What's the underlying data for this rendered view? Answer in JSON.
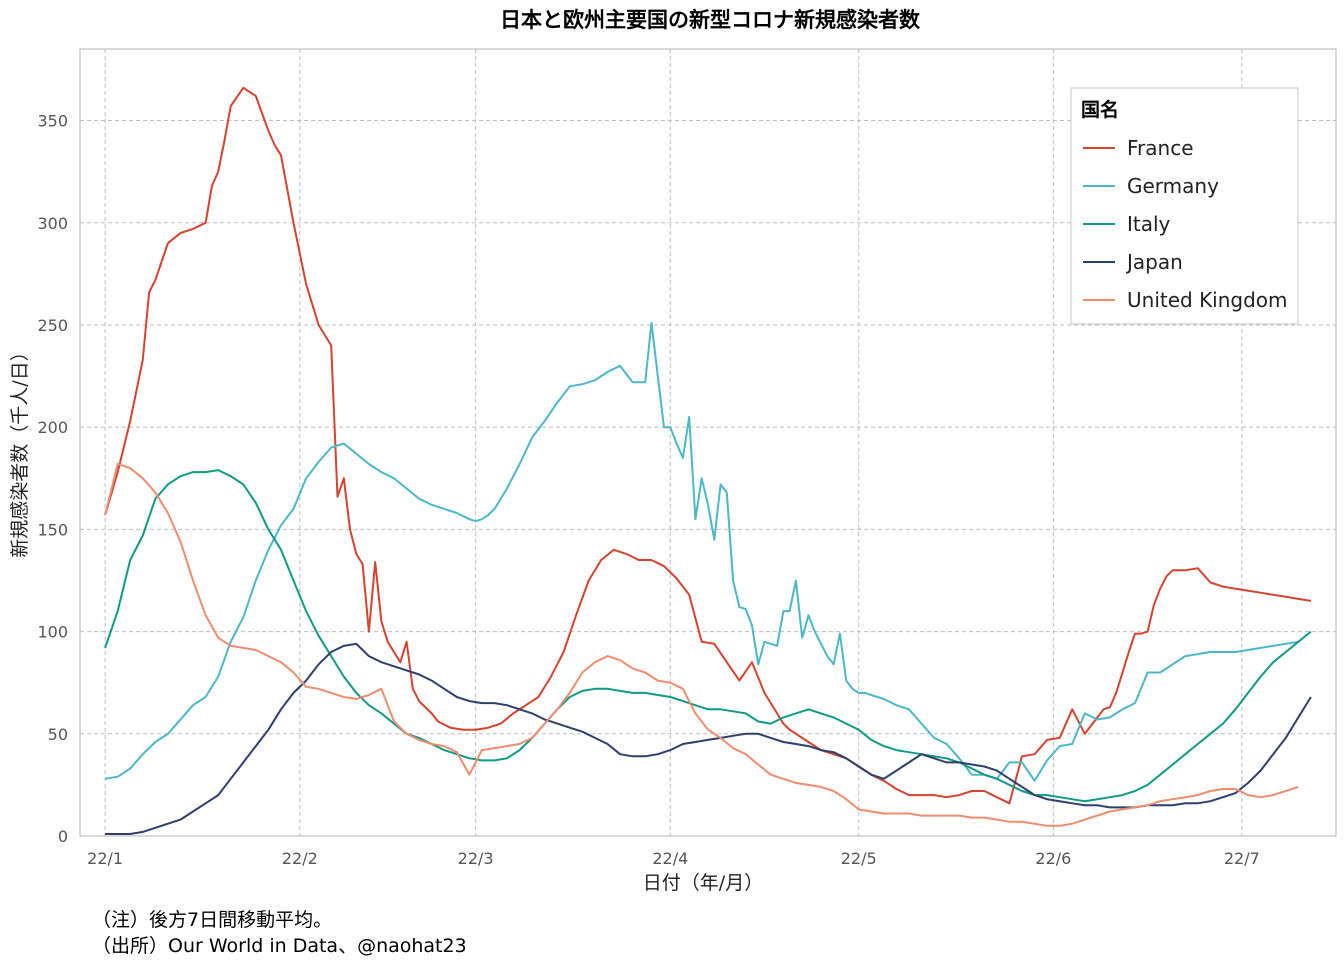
{
  "chart_data": {
    "type": "line",
    "title": "日本と欧州主要国の新型コロナ新規感染者数",
    "xlabel": "日付（年/月）",
    "ylabel": "新規感染者数（千人/日）",
    "ylim": [
      0,
      385
    ],
    "yticks": [
      0,
      50,
      100,
      150,
      200,
      250,
      300,
      350
    ],
    "xlim_days": [
      -4,
      196
    ],
    "xticks": [
      {
        "label": "22/1",
        "day": 0
      },
      {
        "label": "22/2",
        "day": 31
      },
      {
        "label": "22/3",
        "day": 59
      },
      {
        "label": "22/4",
        "day": 90
      },
      {
        "label": "22/5",
        "day": 120
      },
      {
        "label": "22/6",
        "day": 151
      },
      {
        "label": "22/7",
        "day": 181
      }
    ],
    "grid": true,
    "legend": {
      "title": "国名",
      "placement": "top-right"
    },
    "series": [
      {
        "name": "France",
        "color": "#D5432F",
        "x": [
          0,
          2,
          4,
          6,
          7,
          8,
          10,
          12,
          14,
          16,
          17,
          18,
          19,
          20,
          22,
          24,
          26,
          27,
          28,
          30,
          32,
          34,
          36,
          37,
          38,
          39,
          40,
          41,
          42,
          43,
          44,
          45,
          47,
          48,
          49,
          50,
          52,
          53,
          55,
          57,
          59,
          61,
          63,
          65,
          67,
          69,
          71,
          73,
          75,
          77,
          79,
          81,
          83,
          85,
          87,
          89,
          91,
          93,
          95,
          97,
          99,
          101,
          103,
          105,
          107,
          108,
          109,
          111,
          113,
          114,
          115,
          116,
          118,
          120,
          122,
          124,
          126,
          128,
          130,
          132,
          134,
          136,
          138,
          140,
          142,
          144,
          146,
          148,
          150,
          152,
          154,
          156,
          157,
          158,
          159,
          160,
          161,
          162,
          163,
          164,
          165,
          166,
          167,
          168,
          169,
          170,
          172,
          174,
          176,
          178,
          180,
          182,
          184,
          186,
          188,
          190,
          192
        ],
        "y": [
          157,
          178,
          203,
          233,
          266,
          272,
          290,
          295,
          297,
          300,
          318,
          325,
          340,
          357,
          366,
          362,
          345,
          338,
          333,
          300,
          270,
          250,
          240,
          166,
          175,
          150,
          138,
          133,
          100,
          134,
          105,
          95,
          85,
          95,
          72,
          66,
          60,
          56,
          53,
          52,
          52,
          53,
          55,
          60,
          64,
          68,
          78,
          90,
          108,
          125,
          135,
          140,
          138,
          135,
          135,
          132,
          126,
          118,
          95,
          94,
          85,
          76,
          85,
          70,
          60,
          55,
          52,
          48,
          44,
          42,
          41,
          40,
          38,
          34,
          30,
          27,
          23,
          20,
          20,
          20,
          19,
          20,
          22,
          22,
          19,
          16,
          39,
          40,
          47,
          48,
          62,
          50,
          54,
          58,
          62,
          63,
          70,
          80,
          90,
          99,
          99,
          100,
          113,
          121,
          127,
          130,
          130,
          131,
          124,
          122,
          121,
          120,
          119,
          118,
          117,
          116,
          115
        ]
      },
      {
        "name": "Germany",
        "color": "#4BB7C9",
        "x": [
          0,
          2,
          4,
          6,
          8,
          10,
          12,
          14,
          16,
          18,
          20,
          22,
          24,
          26,
          28,
          30,
          32,
          34,
          36,
          38,
          40,
          42,
          44,
          46,
          48,
          50,
          52,
          54,
          56,
          58,
          59,
          60,
          61,
          62,
          64,
          66,
          68,
          70,
          72,
          74,
          76,
          78,
          80,
          82,
          84,
          86,
          87,
          88,
          89,
          90,
          91,
          92,
          93,
          94,
          95,
          96,
          97,
          98,
          99,
          100,
          101,
          102,
          103,
          104,
          105,
          107,
          108,
          109,
          110,
          111,
          112,
          113,
          114,
          115,
          116,
          117,
          118,
          119,
          120,
          121,
          122,
          124,
          126,
          128,
          130,
          132,
          134,
          136,
          138,
          140,
          142,
          144,
          146,
          148,
          150,
          152,
          154,
          156,
          158,
          160,
          162,
          164,
          166,
          168,
          170,
          172,
          174,
          176,
          178,
          180,
          182,
          184,
          186,
          188,
          190
        ],
        "y": [
          28,
          29,
          33,
          40,
          46,
          50,
          57,
          64,
          68,
          78,
          95,
          107,
          125,
          140,
          152,
          160,
          175,
          183,
          190,
          192,
          187,
          182,
          178,
          175,
          170,
          165,
          162,
          160,
          158,
          155,
          154,
          155,
          157,
          160,
          170,
          182,
          195,
          203,
          212,
          220,
          221,
          223,
          227,
          230,
          222,
          222,
          251,
          225,
          200,
          200,
          192,
          185,
          205,
          155,
          175,
          162,
          145,
          172,
          168,
          125,
          112,
          111,
          103,
          84,
          95,
          93,
          110,
          110,
          125,
          97,
          108,
          100,
          94,
          88,
          84,
          99,
          76,
          72,
          70,
          70,
          69,
          67,
          64,
          62,
          55,
          48,
          45,
          38,
          30,
          30,
          28,
          36,
          36,
          27,
          37,
          44,
          45,
          60,
          57,
          58,
          62,
          65,
          80,
          80,
          84,
          88,
          89,
          90,
          90,
          90,
          91,
          92,
          93,
          94,
          95
        ]
      },
      {
        "name": "Italy",
        "color": "#0E9A86",
        "x": [
          0,
          2,
          4,
          6,
          8,
          10,
          12,
          14,
          16,
          18,
          20,
          22,
          24,
          26,
          28,
          30,
          32,
          34,
          36,
          38,
          40,
          42,
          44,
          46,
          48,
          50,
          52,
          54,
          56,
          58,
          60,
          62,
          64,
          66,
          68,
          70,
          72,
          74,
          76,
          78,
          80,
          82,
          84,
          86,
          88,
          90,
          92,
          94,
          96,
          98,
          100,
          102,
          104,
          106,
          108,
          110,
          112,
          114,
          116,
          118,
          120,
          122,
          124,
          126,
          128,
          130,
          132,
          134,
          136,
          138,
          140,
          142,
          144,
          146,
          148,
          150,
          152,
          154,
          156,
          158,
          160,
          162,
          164,
          166,
          168,
          170,
          172,
          174,
          176,
          178,
          180,
          182,
          184,
          186,
          188,
          190,
          192
        ],
        "y": [
          92,
          110,
          135,
          147,
          165,
          172,
          176,
          178,
          178,
          179,
          176,
          172,
          163,
          150,
          140,
          125,
          110,
          98,
          88,
          78,
          70,
          64,
          60,
          55,
          50,
          48,
          45,
          42,
          40,
          38,
          37,
          37,
          38,
          42,
          48,
          55,
          62,
          68,
          71,
          72,
          72,
          71,
          70,
          70,
          69,
          68,
          66,
          64,
          62,
          62,
          61,
          60,
          56,
          55,
          58,
          60,
          62,
          60,
          58,
          55,
          52,
          47,
          44,
          42,
          41,
          40,
          39,
          38,
          36,
          33,
          30,
          28,
          25,
          22,
          20,
          20,
          19,
          18,
          17,
          18,
          19,
          20,
          22,
          25,
          30,
          35,
          40,
          45,
          50,
          55,
          62,
          70,
          78,
          85,
          90,
          95,
          100
        ]
      },
      {
        "name": "Japan",
        "color": "#2E3F6D",
        "x": [
          0,
          2,
          4,
          6,
          8,
          10,
          12,
          14,
          16,
          18,
          20,
          22,
          24,
          26,
          28,
          30,
          32,
          34,
          36,
          38,
          40,
          42,
          44,
          46,
          48,
          50,
          52,
          54,
          56,
          58,
          60,
          62,
          64,
          66,
          68,
          70,
          72,
          74,
          76,
          78,
          80,
          82,
          84,
          86,
          88,
          90,
          92,
          94,
          96,
          98,
          100,
          102,
          104,
          106,
          108,
          110,
          112,
          114,
          116,
          118,
          120,
          122,
          124,
          126,
          128,
          130,
          132,
          134,
          136,
          138,
          140,
          142,
          144,
          146,
          148,
          150,
          152,
          154,
          156,
          158,
          160,
          162,
          164,
          166,
          168,
          170,
          172,
          174,
          176,
          178,
          180,
          182,
          184,
          186,
          188,
          190,
          192
        ],
        "y": [
          1,
          1,
          1,
          2,
          4,
          6,
          8,
          12,
          16,
          20,
          28,
          36,
          44,
          52,
          62,
          70,
          76,
          84,
          90,
          93,
          94,
          88,
          85,
          83,
          81,
          79,
          76,
          72,
          68,
          66,
          65,
          65,
          64,
          62,
          60,
          57,
          55,
          53,
          51,
          48,
          45,
          40,
          39,
          39,
          40,
          42,
          45,
          46,
          47,
          48,
          49,
          50,
          50,
          48,
          46,
          45,
          44,
          42,
          41,
          38,
          34,
          30,
          28,
          32,
          36,
          40,
          38,
          36,
          36,
          35,
          34,
          32,
          28,
          24,
          20,
          18,
          17,
          16,
          15,
          15,
          14,
          14,
          14,
          15,
          15,
          15,
          16,
          16,
          17,
          19,
          21,
          26,
          32,
          40,
          48,
          58,
          68
        ]
      },
      {
        "name": "United Kingdom",
        "color": "#F08C6E",
        "x": [
          0,
          2,
          4,
          6,
          8,
          10,
          12,
          14,
          16,
          18,
          20,
          22,
          24,
          26,
          28,
          30,
          32,
          34,
          36,
          38,
          40,
          42,
          44,
          46,
          48,
          50,
          52,
          54,
          56,
          58,
          60,
          62,
          64,
          66,
          68,
          70,
          72,
          74,
          76,
          78,
          80,
          82,
          84,
          86,
          88,
          90,
          92,
          94,
          96,
          98,
          100,
          102,
          104,
          106,
          108,
          110,
          112,
          114,
          116,
          118,
          120,
          122,
          124,
          126,
          128,
          130,
          132,
          134,
          136,
          138,
          140,
          142,
          144,
          146,
          148,
          150,
          152,
          154,
          156,
          158,
          160,
          162,
          164,
          166,
          168,
          170,
          172,
          174,
          176,
          178,
          180,
          182,
          184,
          186,
          188,
          190
        ],
        "y": [
          157,
          182,
          180,
          175,
          168,
          158,
          144,
          125,
          108,
          97,
          93,
          92,
          91,
          88,
          85,
          80,
          73,
          72,
          70,
          68,
          67,
          69,
          72,
          56,
          50,
          47,
          45,
          44,
          41,
          30,
          42,
          43,
          44,
          45,
          48,
          55,
          62,
          70,
          80,
          85,
          88,
          86,
          82,
          80,
          76,
          75,
          72,
          60,
          52,
          48,
          43,
          40,
          35,
          30,
          28,
          26,
          25,
          24,
          22,
          18,
          13,
          12,
          11,
          11,
          11,
          10,
          10,
          10,
          10,
          9,
          9,
          8,
          7,
          7,
          6,
          5,
          5,
          6,
          8,
          10,
          12,
          13,
          14,
          15,
          17,
          18,
          19,
          20,
          22,
          23,
          23,
          20,
          19,
          20,
          22,
          24
        ]
      }
    ],
    "notes": [
      "（注）後方7日間移動平均。",
      "（出所）Our World in Data、@naohat23"
    ]
  }
}
